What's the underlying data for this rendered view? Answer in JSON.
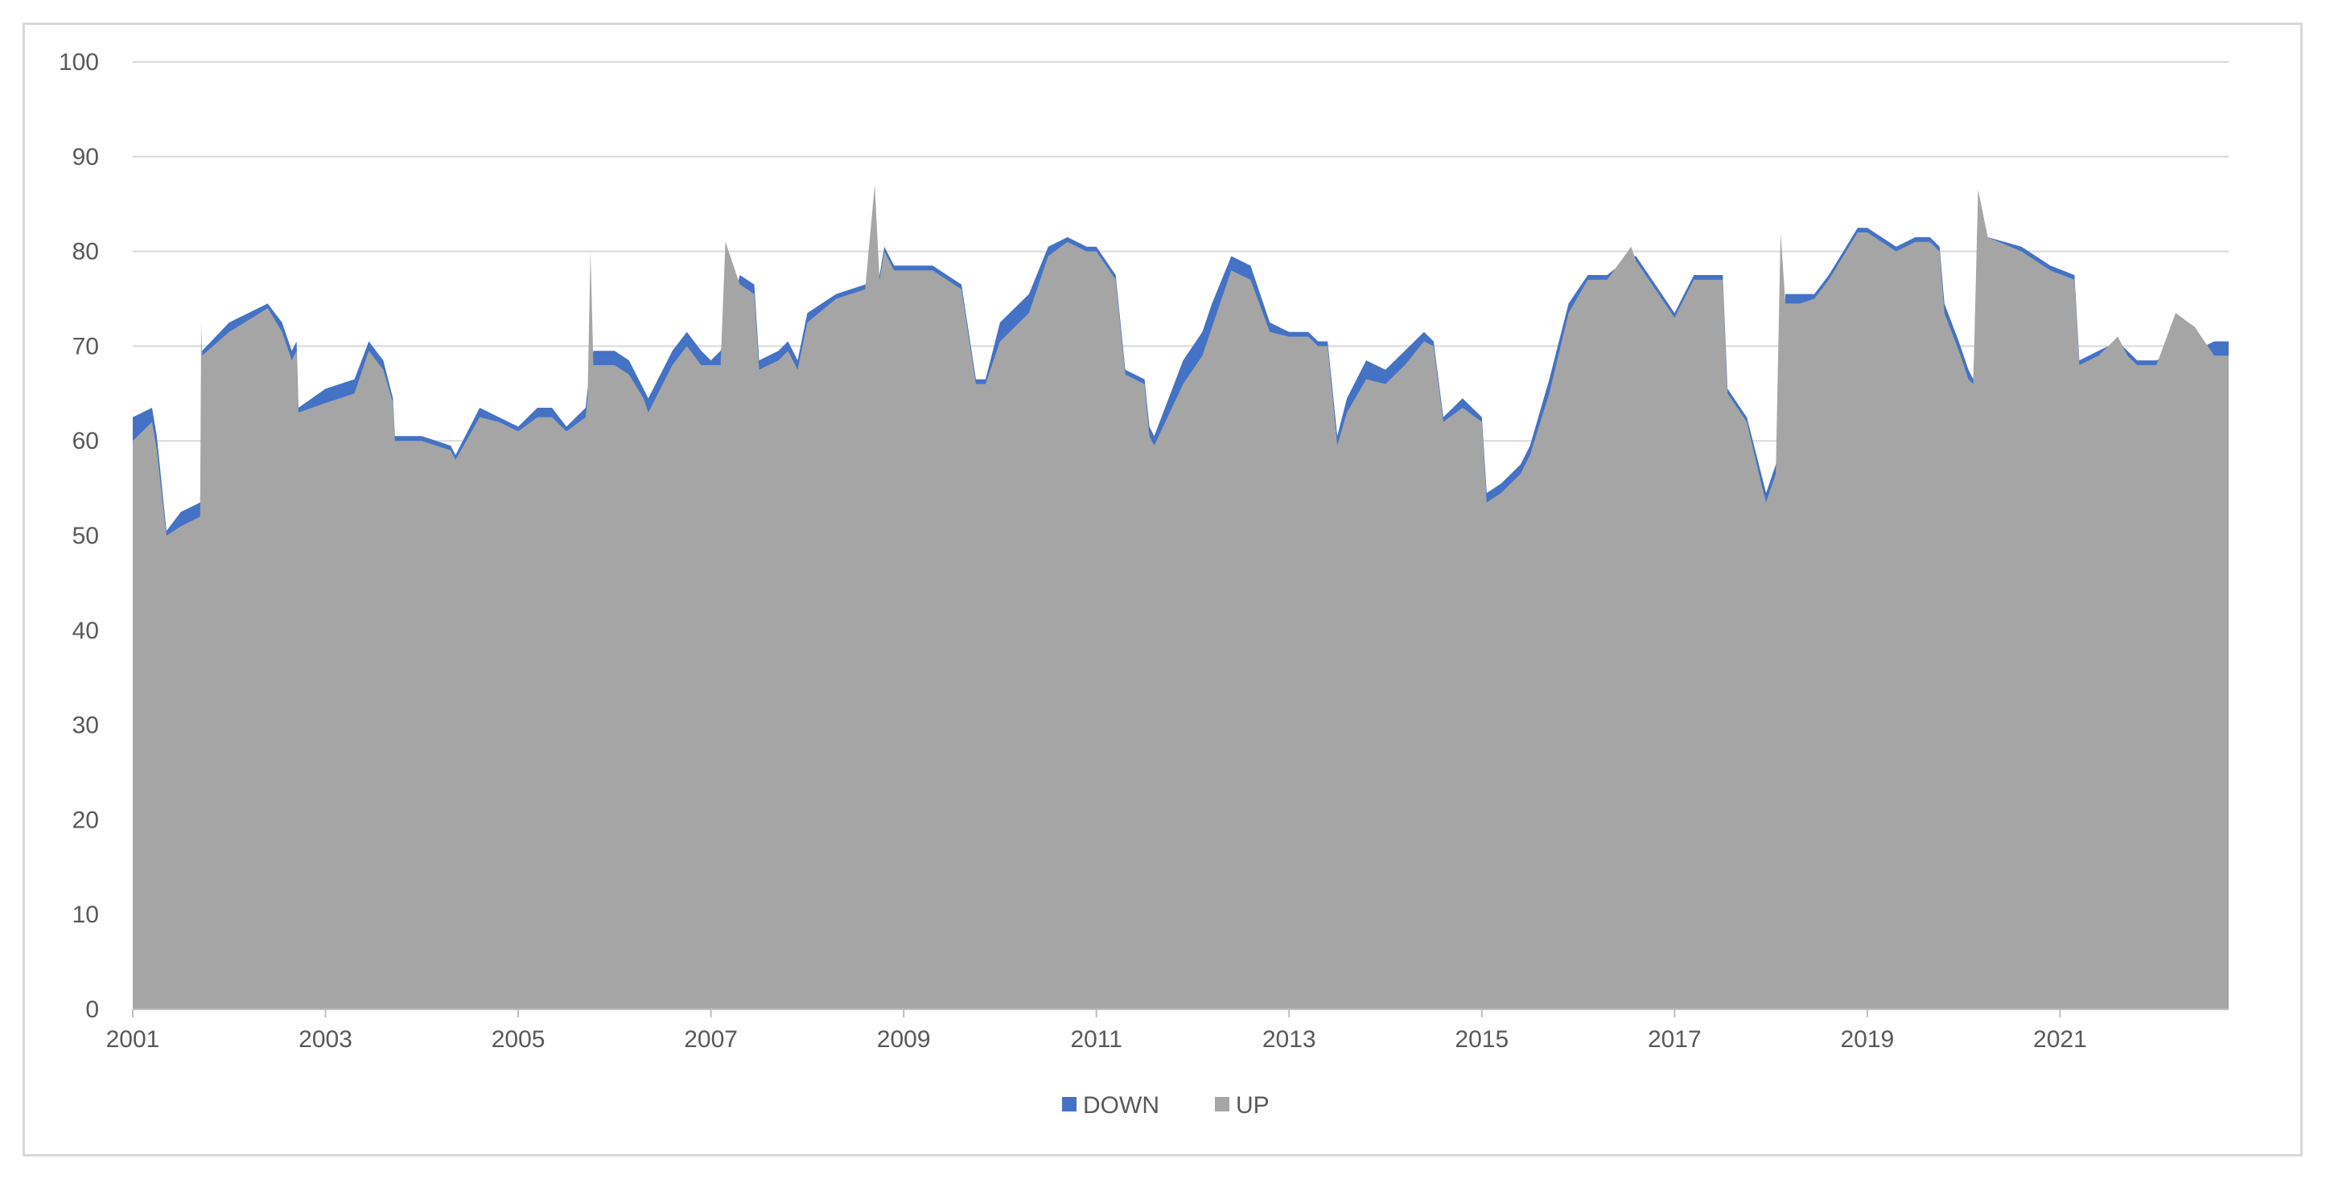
{
  "chart_data": {
    "type": "area",
    "title": "",
    "xlabel": "",
    "ylabel": "",
    "x_start": "2001-01",
    "x_end": "2022-09",
    "x_tick_labels": [
      "2001",
      "2003",
      "2005",
      "2007",
      "2009",
      "2011",
      "2013",
      "2015",
      "2017",
      "2019",
      "2021"
    ],
    "y_tick_labels": [
      "0",
      "10",
      "20",
      "30",
      "40",
      "50",
      "60",
      "70",
      "80",
      "90",
      "100"
    ],
    "ylim": [
      0,
      100
    ],
    "grid": "horizontal",
    "legend_position": "bottom",
    "colors": {
      "DOWN": "#4472c4",
      "UP": "#a5a5a5",
      "grid": "#d9d9d9",
      "axis": "#bfbfbf",
      "text": "#595959"
    },
    "series": [
      {
        "name": "DOWN",
        "x": [
          2001.0,
          2001.2,
          2001.25,
          2001.35,
          2001.5,
          2001.7,
          2001.72,
          2002.0,
          2002.4,
          2002.55,
          2002.65,
          2002.7,
          2002.72,
          2003.0,
          2003.3,
          2003.45,
          2003.6,
          2003.7,
          2003.72,
          2004.0,
          2004.3,
          2004.35,
          2004.6,
          2004.8,
          2005.0,
          2005.2,
          2005.35,
          2005.5,
          2005.7,
          2005.72,
          2005.78,
          2006.0,
          2006.15,
          2006.3,
          2006.35,
          2006.6,
          2006.75,
          2006.9,
          2007.0,
          2007.1,
          2007.3,
          2007.45,
          2007.5,
          2007.7,
          2007.8,
          2007.9,
          2008.0,
          2008.3,
          2008.6,
          2008.75,
          2008.8,
          2008.9,
          2009.0,
          2009.3,
          2009.6,
          2009.75,
          2009.85,
          2010.0,
          2010.3,
          2010.5,
          2010.7,
          2010.9,
          2011.0,
          2011.2,
          2011.3,
          2011.5,
          2011.55,
          2011.6,
          2011.9,
          2012.1,
          2012.2,
          2012.4,
          2012.6,
          2012.8,
          2013.0,
          2013.2,
          2013.3,
          2013.4,
          2013.5,
          2013.6,
          2013.8,
          2014.0,
          2014.2,
          2014.4,
          2014.5,
          2014.6,
          2014.8,
          2015.0,
          2015.05,
          2015.2,
          2015.4,
          2015.5,
          2015.7,
          2015.9,
          2016.1,
          2016.3,
          2016.55,
          2016.6,
          2016.8,
          2017.0,
          2017.2,
          2017.3,
          2017.5,
          2017.55,
          2017.75,
          2017.9,
          2017.95,
          2018.05,
          2018.1,
          2018.15,
          2018.3,
          2018.45,
          2018.6,
          2018.9,
          2019.0,
          2019.3,
          2019.5,
          2019.65,
          2019.75,
          2019.8,
          2019.95,
          2020.05,
          2020.1,
          2020.15,
          2020.25,
          2020.6,
          2020.9,
          2021.15,
          2021.2,
          2021.4,
          2021.6,
          2021.7,
          2021.8,
          2022.0,
          2022.2,
          2022.4,
          2022.6,
          2022.75
        ],
        "values": [
          62.5,
          63.5,
          60.5,
          50.5,
          52.5,
          53.5,
          69.5,
          72.5,
          74.5,
          72.5,
          69.5,
          70.5,
          63.5,
          65.5,
          66.5,
          70.5,
          68.5,
          64.5,
          60.5,
          60.5,
          59.5,
          58.5,
          63.5,
          62.5,
          61.5,
          63.5,
          63.5,
          61.5,
          63.5,
          65.5,
          69.5,
          69.5,
          68.5,
          65.5,
          64.5,
          69.5,
          71.5,
          69.5,
          68.5,
          69.5,
          77.5,
          76.5,
          68.5,
          69.5,
          70.5,
          68.5,
          73.5,
          75.5,
          76.5,
          77.5,
          80.5,
          78.5,
          78.5,
          78.5,
          76.5,
          66.5,
          66.5,
          72.5,
          75.5,
          80.5,
          81.5,
          80.5,
          80.5,
          77.5,
          67.5,
          66.5,
          61.5,
          60.5,
          68.5,
          71.5,
          74.5,
          79.5,
          78.5,
          72.5,
          71.5,
          71.5,
          70.5,
          70.5,
          60.5,
          64.5,
          68.5,
          67.5,
          69.5,
          71.5,
          70.5,
          62.5,
          64.5,
          62.5,
          54.5,
          55.5,
          57.5,
          59.5,
          66.5,
          74.5,
          77.5,
          77.5,
          79.5,
          79.5,
          76.5,
          73.5,
          77.5,
          77.5,
          77.5,
          65.5,
          62.5,
          56.5,
          54.5,
          57.5,
          60.5,
          75.5,
          75.5,
          75.5,
          77.5,
          82.5,
          82.5,
          80.5,
          81.5,
          81.5,
          80.5,
          74.5,
          70.5,
          67.5,
          66.5,
          80.5,
          81.5,
          80.5,
          78.5,
          77.5,
          68.5,
          69.5,
          70.5,
          69.5,
          68.5,
          68.5,
          69.5,
          69.5,
          70.5,
          70.5
        ]
      },
      {
        "name": "UP",
        "x": [
          2001.0,
          2001.2,
          2001.25,
          2001.35,
          2001.5,
          2001.7,
          2001.71,
          2001.72,
          2002.0,
          2002.4,
          2002.55,
          2002.65,
          2002.7,
          2002.72,
          2003.0,
          2003.3,
          2003.45,
          2003.6,
          2003.7,
          2003.72,
          2004.0,
          2004.3,
          2004.35,
          2004.6,
          2004.8,
          2005.0,
          2005.2,
          2005.35,
          2005.5,
          2005.7,
          2005.72,
          2005.75,
          2005.78,
          2006.0,
          2006.15,
          2006.3,
          2006.35,
          2006.6,
          2006.75,
          2006.9,
          2007.0,
          2007.1,
          2007.15,
          2007.3,
          2007.45,
          2007.5,
          2007.7,
          2007.8,
          2007.9,
          2008.0,
          2008.3,
          2008.6,
          2008.7,
          2008.75,
          2008.8,
          2008.9,
          2009.0,
          2009.3,
          2009.6,
          2009.75,
          2009.85,
          2010.0,
          2010.3,
          2010.5,
          2010.7,
          2010.9,
          2011.0,
          2011.2,
          2011.3,
          2011.5,
          2011.55,
          2011.6,
          2011.9,
          2012.1,
          2012.2,
          2012.4,
          2012.6,
          2012.8,
          2013.0,
          2013.2,
          2013.3,
          2013.4,
          2013.5,
          2013.6,
          2013.8,
          2014.0,
          2014.2,
          2014.4,
          2014.5,
          2014.6,
          2014.8,
          2015.0,
          2015.05,
          2015.2,
          2015.4,
          2015.5,
          2015.7,
          2015.9,
          2016.1,
          2016.3,
          2016.55,
          2016.6,
          2016.8,
          2017.0,
          2017.2,
          2017.3,
          2017.5,
          2017.55,
          2017.75,
          2017.9,
          2017.95,
          2018.05,
          2018.1,
          2018.15,
          2018.3,
          2018.45,
          2018.6,
          2018.9,
          2019.0,
          2019.3,
          2019.5,
          2019.65,
          2019.75,
          2019.8,
          2019.95,
          2020.05,
          2020.1,
          2020.15,
          2020.25,
          2020.6,
          2020.9,
          2021.15,
          2021.2,
          2021.4,
          2021.6,
          2021.7,
          2021.8,
          2022.0,
          2022.2,
          2022.4,
          2022.6,
          2022.75
        ],
        "values": [
          60,
          62,
          59,
          50,
          51,
          52,
          72.5,
          69,
          71.5,
          74,
          71.5,
          68.5,
          69.5,
          63,
          64,
          65,
          69.5,
          67.5,
          64,
          60,
          60,
          59,
          58,
          62.5,
          62,
          61,
          62.5,
          62.5,
          61,
          62.5,
          64.5,
          80,
          68,
          68,
          67,
          64.5,
          63,
          68,
          70,
          68,
          68,
          68,
          81,
          76.5,
          75.5,
          67.5,
          68.5,
          69.5,
          67.5,
          72.5,
          75,
          76,
          87,
          77,
          80,
          78,
          78,
          78,
          76,
          66,
          66,
          70.5,
          73.5,
          79.5,
          81,
          80,
          80,
          77,
          67,
          66,
          60.5,
          59.5,
          66,
          69,
          72,
          78,
          77,
          71.5,
          71,
          71,
          70,
          70,
          59.5,
          63,
          66.5,
          66,
          68,
          70.5,
          70,
          62,
          63.5,
          62,
          53.5,
          54.5,
          56.5,
          58.5,
          65,
          73.5,
          77,
          77,
          80.5,
          79,
          76,
          73,
          77,
          77,
          77,
          65,
          62,
          55.5,
          53.5,
          56.5,
          82,
          74.5,
          74.5,
          75,
          77,
          82,
          82,
          80,
          81,
          81,
          80,
          73.5,
          69.5,
          66.5,
          66,
          86.5,
          81.5,
          80,
          78,
          77,
          68,
          69,
          71,
          69,
          68,
          68,
          73.5,
          72,
          69,
          69
        ]
      }
    ]
  }
}
